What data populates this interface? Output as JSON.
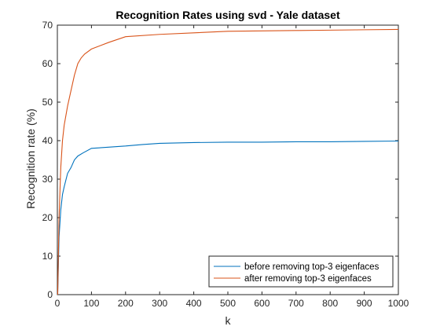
{
  "chart_data": {
    "type": "line",
    "title": "Recognition Rates using svd - Yale dataset",
    "xlabel": "k",
    "ylabel": "Recognition rate (%)",
    "xlim": [
      0,
      1000
    ],
    "ylim": [
      0,
      70
    ],
    "xticks": [
      0,
      100,
      200,
      300,
      400,
      500,
      600,
      700,
      800,
      900,
      1000
    ],
    "yticks": [
      0,
      10,
      20,
      30,
      40,
      50,
      60,
      70
    ],
    "grid": false,
    "legend_position": "bottom-right",
    "series": [
      {
        "name": "before removing top-3 eigenfaces",
        "color": "#0072BD",
        "x": [
          1,
          5,
          10,
          15,
          20,
          30,
          40,
          50,
          60,
          75,
          100,
          150,
          200,
          250,
          300,
          400,
          500,
          600,
          700,
          800,
          900,
          1000
        ],
        "y": [
          0,
          15,
          22,
          26,
          28,
          31.5,
          33,
          35,
          36,
          36.8,
          38,
          38.3,
          38.6,
          39,
          39.3,
          39.5,
          39.6,
          39.6,
          39.7,
          39.7,
          39.8,
          39.9
        ]
      },
      {
        "name": "after removing top-3 eigenfaces",
        "color": "#D95319",
        "x": [
          1,
          5,
          10,
          15,
          20,
          30,
          40,
          50,
          60,
          70,
          80,
          100,
          150,
          200,
          300,
          400,
          500,
          600,
          700,
          800,
          900,
          1000
        ],
        "y": [
          0,
          20,
          33,
          40,
          44,
          49,
          53,
          57,
          60,
          61.5,
          62.5,
          63.8,
          65.5,
          67,
          67.6,
          68,
          68.4,
          68.5,
          68.6,
          68.7,
          68.8,
          68.9
        ]
      }
    ]
  }
}
